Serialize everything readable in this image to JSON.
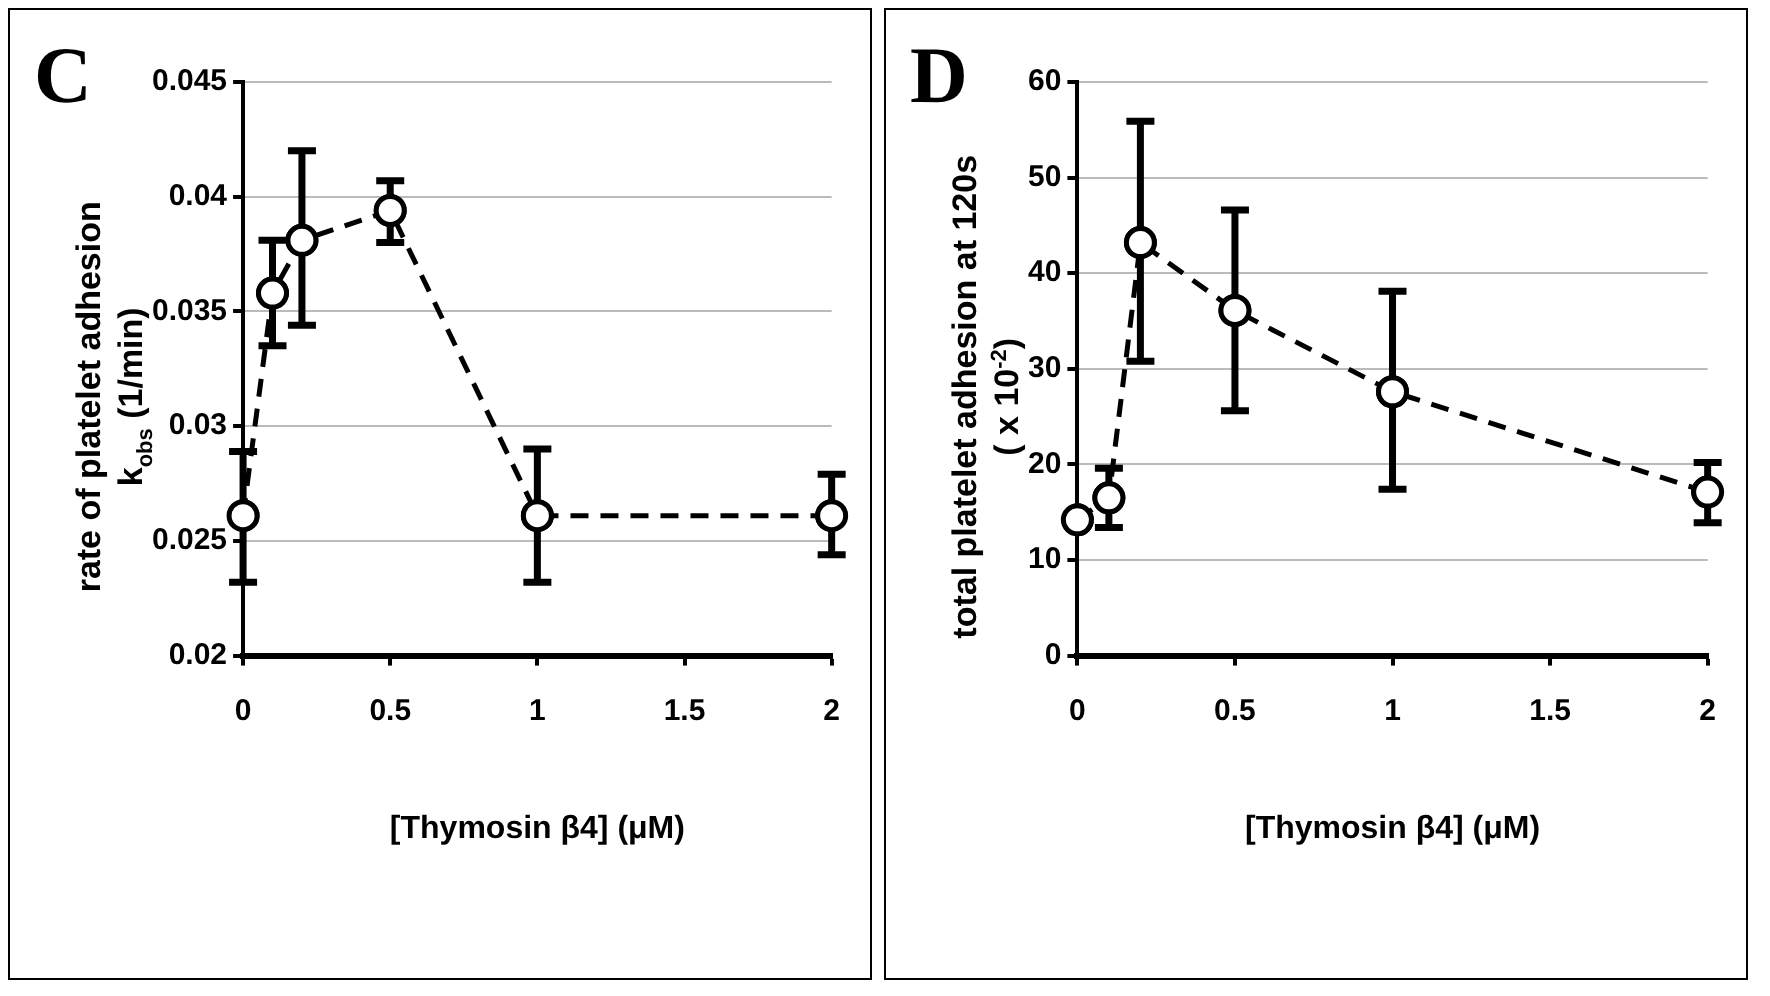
{
  "chart_data": [
    {
      "type": "line",
      "title": "C",
      "xlabel": "[Thymosin β4] (μM)",
      "ylabel": "rate of platelet adhesion\nk$_{obs}$ (1/min)",
      "x": [
        0,
        0.1,
        0.2,
        0.5,
        1,
        2
      ],
      "series": [
        {
          "color": "#000000",
          "values": [
            0.0261,
            0.0358,
            0.0381,
            0.0394,
            0.0261,
            0.0261
          ],
          "errors": [
            [
              0.0232,
              0.0289
            ],
            [
              0.0335,
              0.0381
            ],
            [
              0.0344,
              0.042
            ],
            [
              0.038,
              0.0407
            ],
            [
              0.0232,
              0.029
            ],
            [
              0.0244,
              0.0279
            ]
          ]
        }
      ],
      "xlim": [
        0,
        2
      ],
      "xticks": [
        0,
        0.5,
        1,
        1.5,
        2
      ],
      "ylim": [
        0.02,
        0.045
      ],
      "yticks": [
        0.02,
        0.025,
        0.03,
        0.035,
        0.04,
        0.045
      ],
      "grid": "y",
      "marker": "circle",
      "line_style": "dashed"
    },
    {
      "type": "line",
      "title": "D",
      "xlabel": "[Thymosin β4] (μM)",
      "ylabel": "total platelet adhesion at 120s\n( x 10$^{-2}$)",
      "x": [
        0,
        0.1,
        0.2,
        0.5,
        1,
        2
      ],
      "series": [
        {
          "color": "#000000",
          "values": [
            14.2,
            16.5,
            43.2,
            36.1,
            27.6,
            17.1
          ],
          "errors": [
            null,
            [
              13.4,
              19.6
            ],
            [
              30.8,
              55.9
            ],
            [
              25.6,
              46.6
            ],
            [
              17.4,
              38.1
            ],
            [
              13.9,
              20.2
            ]
          ]
        }
      ],
      "xlim": [
        0,
        2
      ],
      "xticks": [
        0,
        0.5,
        1,
        1.5,
        2
      ],
      "ylim": [
        0,
        60
      ],
      "yticks": [
        0,
        10,
        20,
        30,
        40,
        50,
        60
      ],
      "grid": "y",
      "marker": "circle",
      "line_style": "dashed"
    }
  ]
}
